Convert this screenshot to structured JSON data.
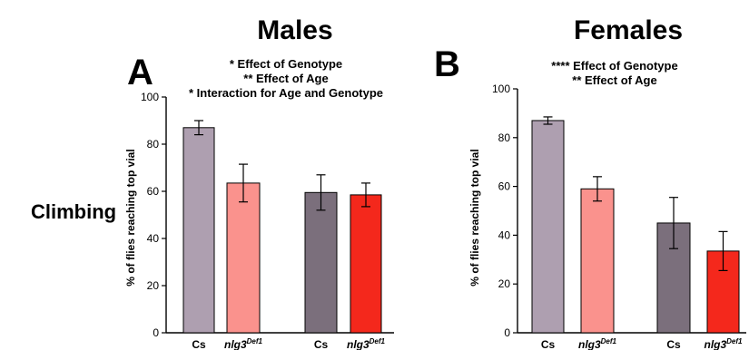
{
  "figure": {
    "headers": [
      "Males",
      "Females"
    ],
    "row_label": "Climbing"
  },
  "colors": {
    "cs_young": "#ae9fb0",
    "nlg3_young": "#fa928d",
    "cs_old": "#7b6f7c",
    "nlg3_old": "#f4281c",
    "axis": "#000000"
  },
  "chart_data": [
    {
      "type": "bar",
      "panel": "A",
      "title": "Males",
      "annotations": [
        "* Effect of Genotype",
        "** Effect of Age",
        "* Interaction for Age and Genotype"
      ],
      "ylabel": "% of flies reaching top vial",
      "ylim": [
        0,
        100
      ],
      "yticks": [
        0,
        20,
        40,
        60,
        80,
        100
      ],
      "categories": [
        "Cs",
        "nlg3Def1",
        "Cs",
        "nlg3Def1"
      ],
      "category_labels": [
        {
          "base": "Cs",
          "sup": ""
        },
        {
          "base": "nlg3",
          "sup": "Def1"
        },
        {
          "base": "Cs",
          "sup": ""
        },
        {
          "base": "nlg3",
          "sup": "Def1"
        }
      ],
      "values": [
        87,
        63.5,
        59.5,
        58.5
      ],
      "errors": [
        3,
        8,
        7.5,
        5
      ],
      "bar_colors": [
        "#ae9fb0",
        "#fa928d",
        "#7b6f7c",
        "#f4281c"
      ]
    },
    {
      "type": "bar",
      "panel": "B",
      "title": "Females",
      "annotations": [
        "**** Effect of Genotype",
        "** Effect of Age"
      ],
      "ylabel": "% of flies reaching top vial",
      "ylim": [
        0,
        100
      ],
      "yticks": [
        0,
        20,
        40,
        60,
        80,
        100
      ],
      "categories": [
        "Cs",
        "nlg3Def1",
        "Cs",
        "nlg3Def1"
      ],
      "category_labels": [
        {
          "base": "Cs",
          "sup": ""
        },
        {
          "base": "nlg3",
          "sup": "Def1"
        },
        {
          "base": "Cs",
          "sup": ""
        },
        {
          "base": "nlg3",
          "sup": "Def1"
        }
      ],
      "values": [
        87,
        59,
        45,
        33.5
      ],
      "errors": [
        1.5,
        5,
        10.5,
        8
      ],
      "bar_colors": [
        "#ae9fb0",
        "#fa928d",
        "#7b6f7c",
        "#f4281c"
      ]
    }
  ]
}
